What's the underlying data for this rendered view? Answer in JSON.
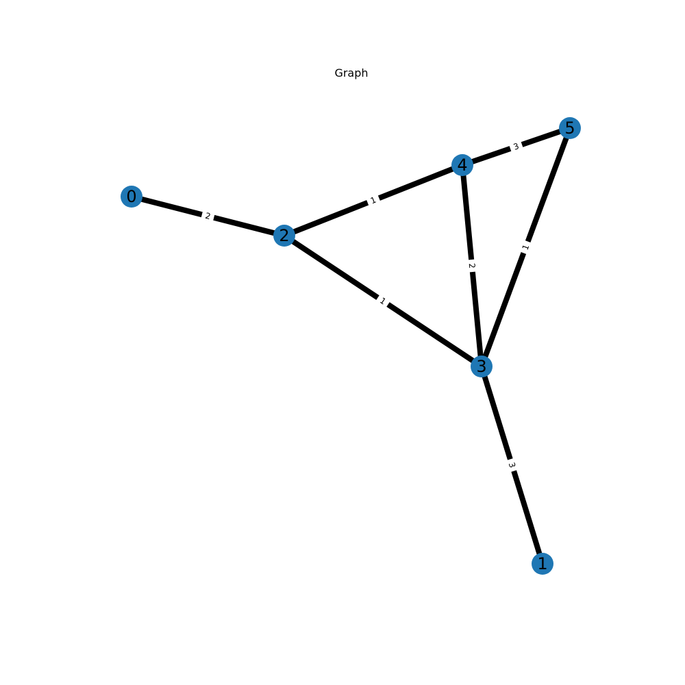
{
  "title": "Graph",
  "colors": {
    "node_fill": "#1f77b4",
    "edge": "#000000",
    "background": "#ffffff"
  },
  "nodes": [
    {
      "id": "0",
      "label": "0"
    },
    {
      "id": "1",
      "label": "1"
    },
    {
      "id": "2",
      "label": "2"
    },
    {
      "id": "3",
      "label": "3"
    },
    {
      "id": "4",
      "label": "4"
    },
    {
      "id": "5",
      "label": "5"
    }
  ],
  "edges": [
    {
      "source": "0",
      "target": "2",
      "weight": "2"
    },
    {
      "source": "2",
      "target": "4",
      "weight": "1"
    },
    {
      "source": "2",
      "target": "3",
      "weight": "1"
    },
    {
      "source": "4",
      "target": "5",
      "weight": "3"
    },
    {
      "source": "4",
      "target": "3",
      "weight": "2"
    },
    {
      "source": "5",
      "target": "3",
      "weight": "1"
    },
    {
      "source": "3",
      "target": "1",
      "weight": "3"
    }
  ]
}
